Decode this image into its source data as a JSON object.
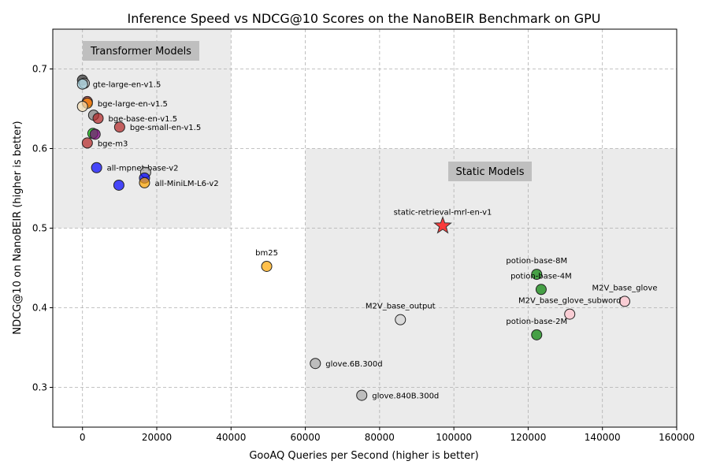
{
  "chart_data": {
    "type": "scatter",
    "title": "Inference Speed vs NDCG@10 Scores on the NanoBEIR Benchmark on GPU",
    "xlabel": "GooAQ Queries per Second (higher is better)",
    "ylabel": "NDCG@10 on NanoBEIR (higher is better)",
    "xlim": [
      -8000,
      160000
    ],
    "ylim": [
      0.25,
      0.75
    ],
    "xticks": [
      0,
      20000,
      40000,
      60000,
      80000,
      100000,
      120000,
      140000,
      160000
    ],
    "yticks": [
      0.3,
      0.4,
      0.5,
      0.6,
      0.7
    ],
    "grid": true,
    "regions": [
      {
        "label": "Transformer Models",
        "x": [
          -8000,
          40000
        ],
        "y": [
          0.5,
          0.75
        ],
        "color": "#ebebeb"
      },
      {
        "label": "Static Models",
        "x": [
          60000,
          160000
        ],
        "y": [
          0.25,
          0.6
        ],
        "color": "#ebebeb"
      }
    ],
    "points": [
      {
        "x": 0,
        "y": 0.686,
        "color": "#333333",
        "label": ""
      },
      {
        "x": 500,
        "y": 0.682,
        "color": "#a9a9a9",
        "label": ""
      },
      {
        "x": 0,
        "y": 0.681,
        "color": "#add8e6",
        "label": "gte-large-en-v1.5",
        "pos": "right"
      },
      {
        "x": 1300,
        "y": 0.659,
        "color": "#b22222",
        "label": ""
      },
      {
        "x": 1300,
        "y": 0.657,
        "color": "#ff8c00",
        "label": "bge-large-en-v1.5",
        "pos": "right"
      },
      {
        "x": 0,
        "y": 0.653,
        "color": "#f5deb3",
        "label": ""
      },
      {
        "x": 3000,
        "y": 0.642,
        "color": "#808080",
        "label": ""
      },
      {
        "x": 4200,
        "y": 0.638,
        "color": "#b22222",
        "label": "bge-base-en-v1.5",
        "pos": "right"
      },
      {
        "x": 10000,
        "y": 0.627,
        "color": "#b22222",
        "label": "bge-small-en-v1.5",
        "pos": "right"
      },
      {
        "x": 2800,
        "y": 0.619,
        "color": "#00cc00",
        "label": ""
      },
      {
        "x": 3400,
        "y": 0.618,
        "color": "#800080",
        "label": ""
      },
      {
        "x": 1300,
        "y": 0.607,
        "color": "#b22222",
        "label": "bge-m3",
        "pos": "right"
      },
      {
        "x": 3800,
        "y": 0.576,
        "color": "#0000ff",
        "label": "all-mpnet-base-v2",
        "pos": "right"
      },
      {
        "x": 17000,
        "y": 0.57,
        "color": "#a9a9a9",
        "label": ""
      },
      {
        "x": 16700,
        "y": 0.563,
        "color": "#0000ff",
        "label": ""
      },
      {
        "x": 16700,
        "y": 0.557,
        "color": "#ffa500",
        "label": "all-MiniLM-L6-v2",
        "pos": "right"
      },
      {
        "x": 9800,
        "y": 0.554,
        "color": "#0000ff",
        "label": ""
      },
      {
        "x": 97000,
        "y": 0.503,
        "color": "#ff0000",
        "label": "static-retrieval-mrl-en-v1",
        "pos": "above",
        "marker": "star"
      },
      {
        "x": 49600,
        "y": 0.452,
        "color": "#ffa500",
        "label": "bm25",
        "pos": "above"
      },
      {
        "x": 122300,
        "y": 0.442,
        "color": "#008000",
        "label": "potion-base-8M",
        "pos": "above"
      },
      {
        "x": 123500,
        "y": 0.423,
        "color": "#008000",
        "label": "potion-base-4M",
        "pos": "above"
      },
      {
        "x": 146000,
        "y": 0.408,
        "color": "#ffc0cb",
        "label": "M2V_base_glove",
        "pos": "above"
      },
      {
        "x": 131200,
        "y": 0.392,
        "color": "#ffc0cb",
        "label": "M2V_base_glove_subword",
        "pos": "above"
      },
      {
        "x": 85600,
        "y": 0.385,
        "color": "#d3d3d3",
        "label": "M2V_base_output",
        "pos": "above"
      },
      {
        "x": 122300,
        "y": 0.366,
        "color": "#008000",
        "label": "potion-base-2M",
        "pos": "above"
      },
      {
        "x": 62700,
        "y": 0.33,
        "color": "#a9a9a9",
        "label": "glove.6B.300d",
        "pos": "right"
      },
      {
        "x": 75200,
        "y": 0.29,
        "color": "#a9a9a9",
        "label": "glove.840B.300d",
        "pos": "right"
      }
    ]
  }
}
